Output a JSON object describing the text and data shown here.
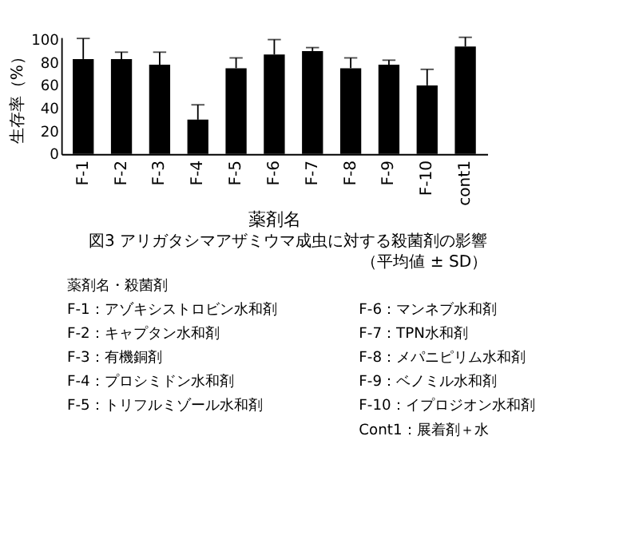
{
  "chart_data": {
    "type": "bar",
    "title": "図3 アリガタシマアザミウマ成虫に対する殺菌剤の影響",
    "subtitle": "（平均値 ±  SD）",
    "xlabel": "薬剤名",
    "ylabel": "生存率（%）",
    "categories": [
      "F-1",
      "F-2",
      "F-3",
      "F-4",
      "F-5",
      "F-6",
      "F-7",
      "F-8",
      "F-9",
      "F-10",
      "cont1"
    ],
    "values": [
      83,
      83,
      78,
      30,
      75,
      87,
      90,
      75,
      78,
      60,
      94
    ],
    "errors": [
      [
        83,
        101
      ],
      [
        83,
        89
      ],
      [
        78,
        89
      ],
      [
        30,
        43
      ],
      [
        75,
        84
      ],
      [
        87,
        100
      ],
      [
        90,
        93
      ],
      [
        75,
        84
      ],
      [
        78,
        82
      ],
      [
        60,
        74
      ],
      [
        94,
        102
      ]
    ],
    "color": "#000000",
    "ylim": [
      0,
      102
    ],
    "yticks": [
      0,
      20,
      40,
      60,
      80,
      100
    ],
    "grid": false,
    "annotations": [
      "薬剤名・殺菌剤",
      "F-1：アゾキシストロビン水和剤",
      "F-2：キャプタン水和剤",
      "F-3：有機銅剤",
      "F-4：プロシミドン水和剤",
      "F-5：トリフルミゾール水和剤",
      "F-6：マンネブ水和剤",
      "F-7：TPN水和剤",
      "F-8：メパニピリム水和剤",
      "F-9：ベノミル水和剤",
      "F-10：イプロジオン水和剤",
      "Cont1：展着剤＋水"
    ]
  }
}
